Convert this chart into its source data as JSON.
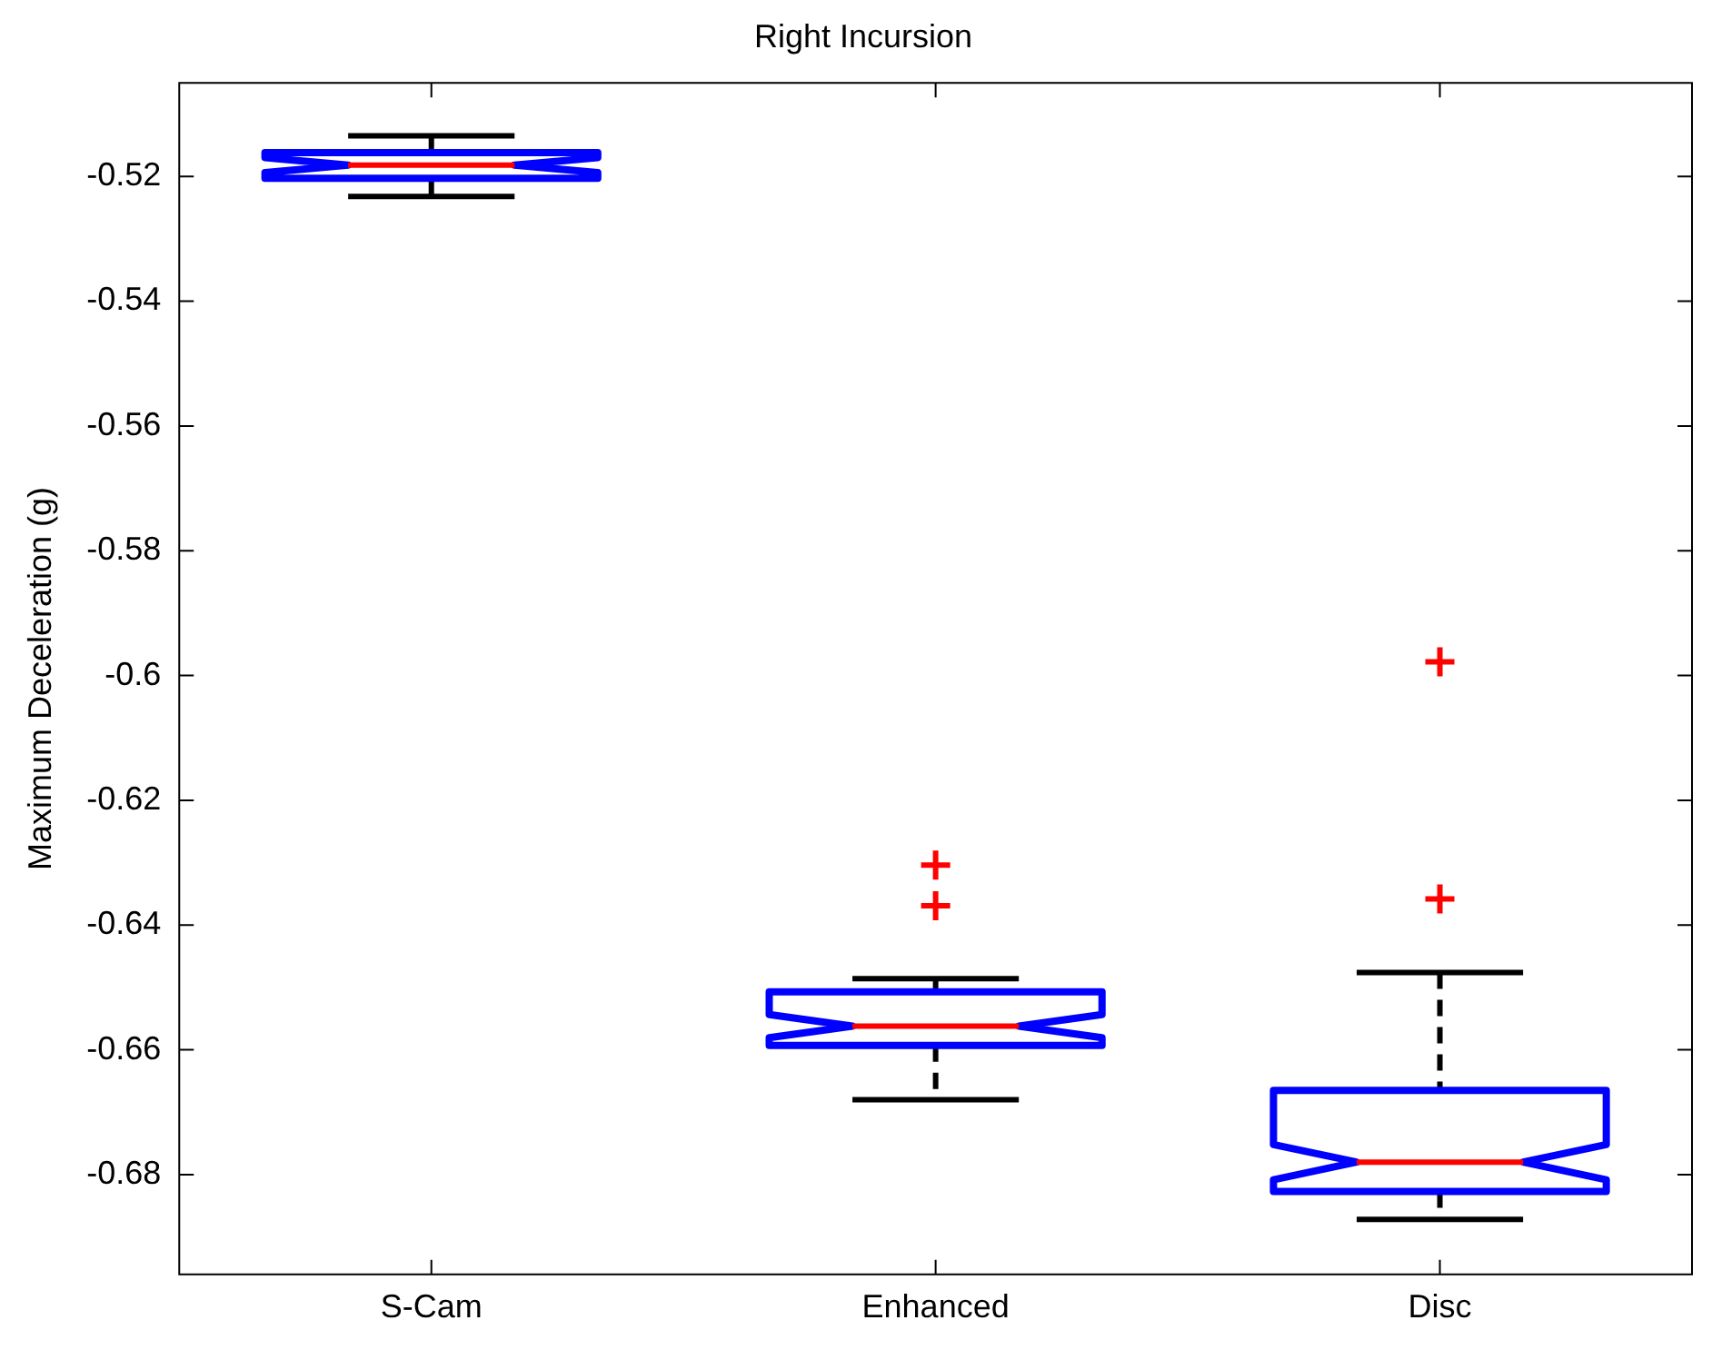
{
  "chart_data": {
    "type": "box",
    "title": "Right Incursion",
    "ylabel": "Maximum Deceleration (g)",
    "categories": [
      "S-Cam",
      "Enhanced",
      "Disc"
    ],
    "ylim": [
      -0.696,
      -0.505
    ],
    "yticks": [
      -0.68,
      -0.66,
      -0.64,
      -0.62,
      -0.6,
      -0.58,
      -0.56,
      -0.54,
      -0.52
    ],
    "grid": false,
    "legend": false,
    "series": [
      {
        "color": "#0000ff",
        "boxes": [
          {
            "low": -0.5232,
            "q1": -0.5203,
            "median": -0.5182,
            "q3": -0.5162,
            "high": -0.5135
          },
          {
            "low": -0.668,
            "q1": -0.6593,
            "median": -0.6562,
            "q3": -0.6507,
            "high": -0.6486,
            "outliers": [
              -0.6304,
              -0.6369
            ]
          },
          {
            "low": -0.6872,
            "q1": -0.6827,
            "median": -0.678,
            "q3": -0.6665,
            "high": -0.6476,
            "outliers": [
              -0.5978,
              -0.6358
            ]
          }
        ]
      }
    ]
  }
}
